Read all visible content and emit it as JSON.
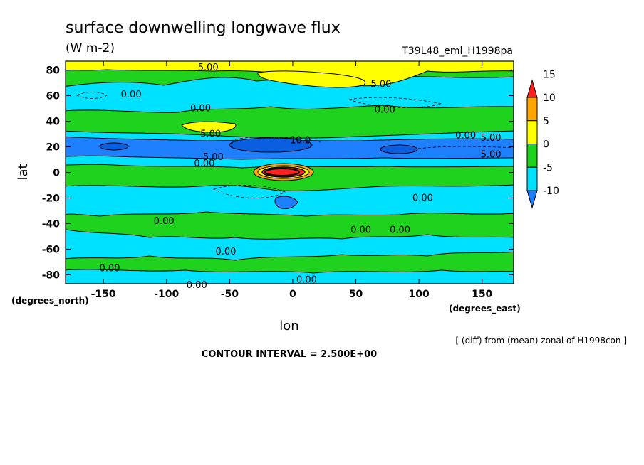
{
  "chart_data": {
    "type": "heatmap",
    "title": "surface downwelling longwave flux",
    "subtitle": "(W m-2)",
    "run_label": "T39L48_eml_H1998pa",
    "xlabel": "lon",
    "ylabel": "lat",
    "x_unit_label": "(degrees_east)",
    "y_unit_label": "(degrees_north)",
    "xlim": [
      -180,
      175
    ],
    "ylim": [
      -87,
      87
    ],
    "x_ticks": [
      -150,
      -100,
      -50,
      0,
      50,
      100,
      150
    ],
    "x_tick_labels": [
      "-150",
      "-100",
      "-50",
      "0",
      "50",
      "100",
      "150"
    ],
    "y_ticks": [
      -80,
      -60,
      -40,
      -20,
      0,
      20,
      40,
      60,
      80
    ],
    "y_tick_labels": [
      "-80",
      "-60",
      "-40",
      "-20",
      "0",
      "20",
      "40",
      "60",
      "80"
    ],
    "colorbar": {
      "levels": [
        -10,
        -5,
        0,
        5,
        10,
        15
      ],
      "labels": [
        "-10",
        "-5",
        "0",
        "5",
        "10",
        "15"
      ],
      "colors": [
        "#1e7fff",
        "#00e1ff",
        "#1ed21e",
        "#ffff00",
        "#ffa500",
        "#ff2020"
      ],
      "extend": "both"
    },
    "contour_labels": [
      {
        "text": "5.00",
        "lon": -67,
        "lat": 82
      },
      {
        "text": "5.00",
        "lon": 70,
        "lat": 69
      },
      {
        "text": "0.00",
        "lon": -128,
        "lat": 61
      },
      {
        "text": "0.00",
        "lon": 73,
        "lat": 49
      },
      {
        "text": "0.00",
        "lon": -73,
        "lat": 50
      },
      {
        "text": "5.00",
        "lon": -65,
        "lat": 30
      },
      {
        "text": "10.0",
        "lon": 6,
        "lat": 25
      },
      {
        "text": "0.00",
        "lon": 137,
        "lat": 29
      },
      {
        "text": "5.00",
        "lon": 157,
        "lat": 27
      },
      {
        "text": "5.00",
        "lon": -63,
        "lat": 12
      },
      {
        "text": "5.00",
        "lon": 157,
        "lat": 14
      },
      {
        "text": "0.00",
        "lon": -70,
        "lat": 7
      },
      {
        "text": "0.00",
        "lon": 103,
        "lat": -20
      },
      {
        "text": "0.00",
        "lon": -102,
        "lat": -38
      },
      {
        "text": "0.00",
        "lon": 54,
        "lat": -45
      },
      {
        "text": "0.00",
        "lon": 85,
        "lat": -45
      },
      {
        "text": "0.00",
        "lon": -53,
        "lat": -62
      },
      {
        "text": "0.00",
        "lon": -145,
        "lat": -75
      },
      {
        "text": "0.00",
        "lon": 11,
        "lat": -84
      },
      {
        "text": "0.00",
        "lon": -76,
        "lat": -88
      }
    ],
    "note": "[ (diff) from (mean) zonal of H1998con ]",
    "contour_interval": "CONTOUR INTERVAL = 2.500E+00",
    "grid": false,
    "legend_placement": "right"
  }
}
